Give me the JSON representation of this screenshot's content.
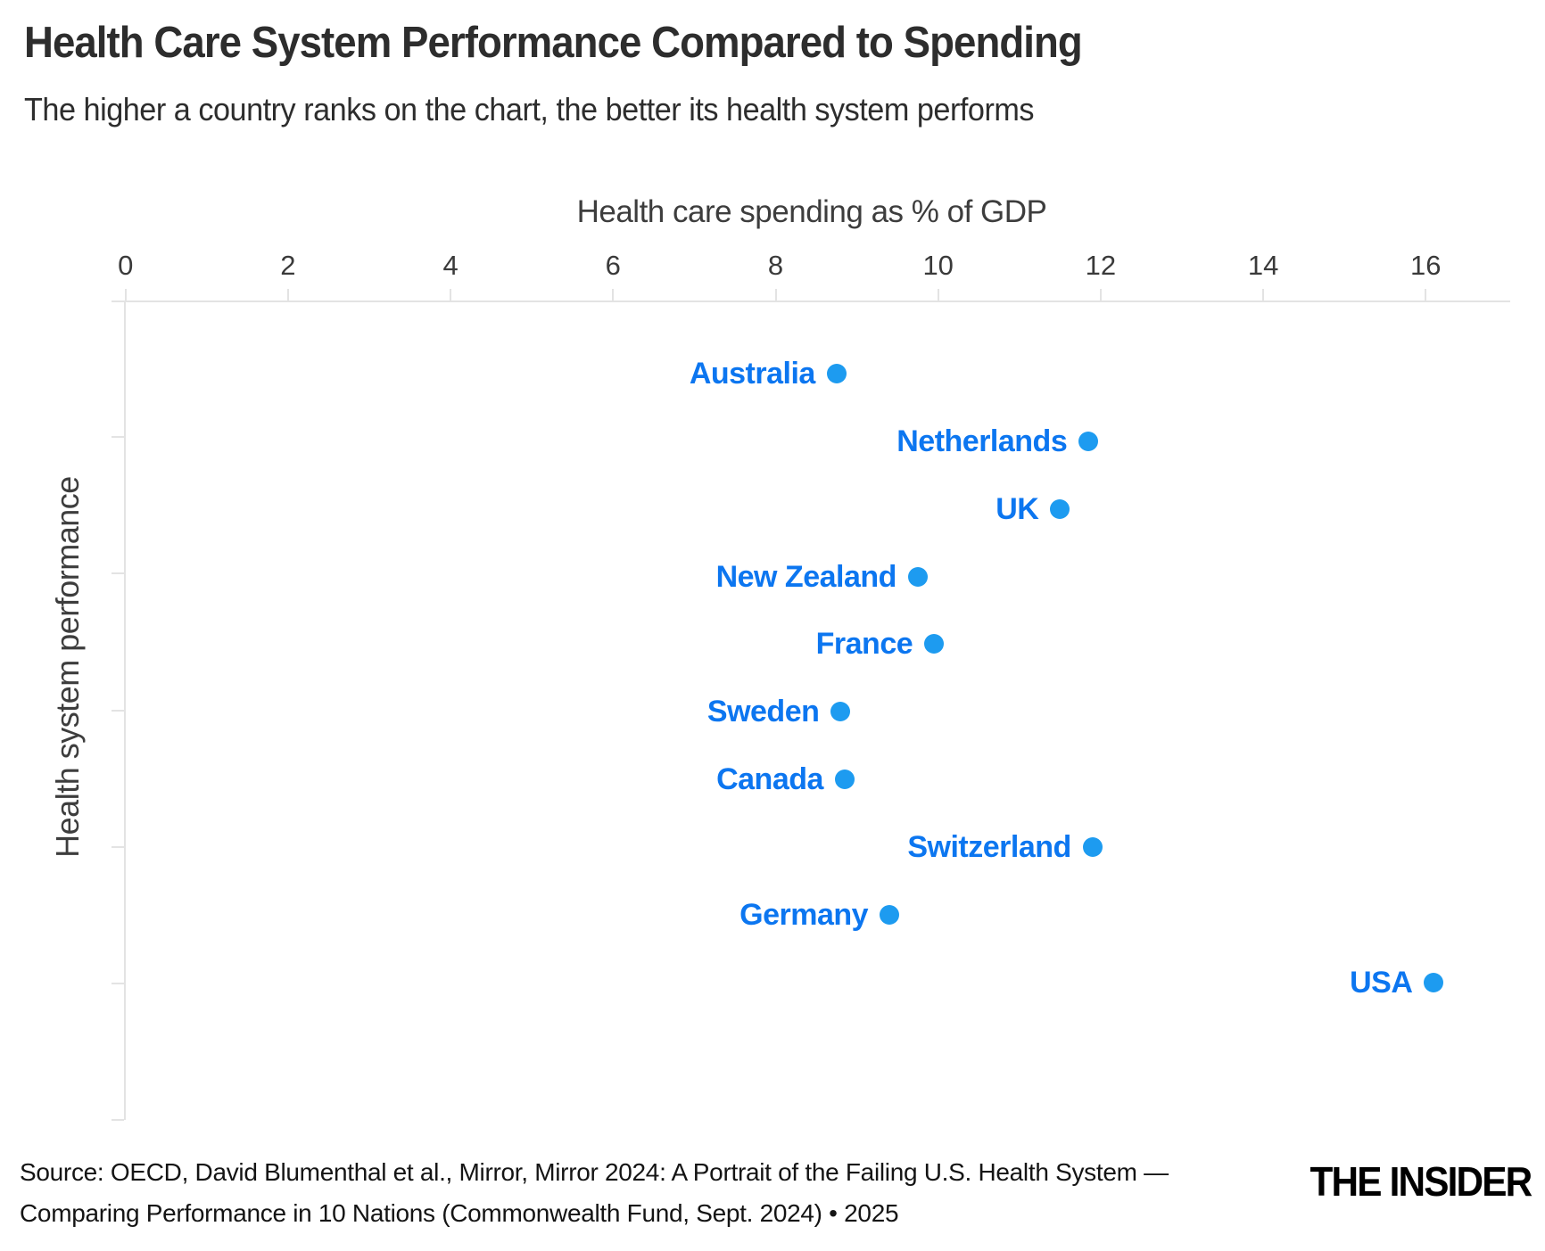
{
  "chart_data": {
    "type": "scatter",
    "title": "Health Care System Performance Compared to Spending",
    "subtitle": "The higher a country ranks on the chart, the better its health system performs",
    "xlabel": "Health care spending as % of GDP",
    "ylabel": "Health system performance",
    "xlim": [
      0,
      17
    ],
    "x_ticks": [
      0,
      2,
      4,
      6,
      8,
      10,
      12,
      14,
      16
    ],
    "y_axis_note": "categorical ranking, best performer at top, no y tick labels",
    "grid": "off",
    "legend": "none",
    "points": [
      {
        "country": "Australia",
        "spending_pct_gdp": 8.75,
        "performance_rank": 1
      },
      {
        "country": "Netherlands",
        "spending_pct_gdp": 11.85,
        "performance_rank": 2
      },
      {
        "country": "UK",
        "spending_pct_gdp": 11.5,
        "performance_rank": 3
      },
      {
        "country": "New Zealand",
        "spending_pct_gdp": 9.75,
        "performance_rank": 4
      },
      {
        "country": "France",
        "spending_pct_gdp": 9.95,
        "performance_rank": 5
      },
      {
        "country": "Sweden",
        "spending_pct_gdp": 8.8,
        "performance_rank": 6
      },
      {
        "country": "Canada",
        "spending_pct_gdp": 8.85,
        "performance_rank": 7
      },
      {
        "country": "Switzerland",
        "spending_pct_gdp": 11.9,
        "performance_rank": 8
      },
      {
        "country": "Germany",
        "spending_pct_gdp": 9.4,
        "performance_rank": 9
      },
      {
        "country": "USA",
        "spending_pct_gdp": 16.1,
        "performance_rank": 10
      }
    ],
    "colors": {
      "dot": "#1d9bf0",
      "label": "#0c76f0",
      "axis": "#e3e3e3",
      "axis_text": "#3a3a3a",
      "title_text": "#2d2d2d"
    }
  },
  "footer": {
    "source_line_1": "Source: OECD, David Blumenthal et al., Mirror, Mirror 2024: A Portrait of the Failing U.S. Health System —",
    "source_line_2": "Comparing Performance in 10 Nations (Commonwealth Fund, Sept. 2024) • 2025",
    "brand": "THE INSIDER"
  }
}
